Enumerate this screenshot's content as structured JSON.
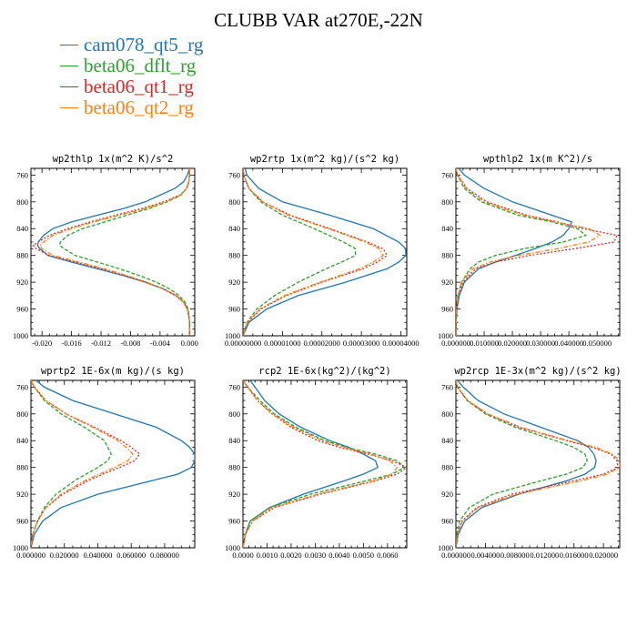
{
  "title": "CLUBB VAR at270E,-22N",
  "legend": [
    {
      "name": "cam078_qt5_rg",
      "color": "#1f77b4"
    },
    {
      "name": "beta06_dflt_rg",
      "color": "#2ca02c"
    },
    {
      "name": "beta06_qt1_rg",
      "color": "#d62728"
    },
    {
      "name": "beta06_qt2_rg",
      "color": "#ff7f0e"
    }
  ],
  "chart_data": [
    {
      "type": "line",
      "title": "wp2thlp   1x(m^2 K)/s^2",
      "x_ticks": [
        "-0.020",
        "-0.016",
        "-0.012",
        "-0.008",
        "-0.004",
        "0.000"
      ],
      "xlim": [
        -0.0215,
        0.0007
      ],
      "x_tick_values": [
        -0.02,
        -0.016,
        -0.012,
        -0.008,
        -0.004,
        0.0
      ],
      "y_ticks": [
        "760",
        "800",
        "840",
        "880",
        "920",
        "960",
        "1000"
      ],
      "ylim": [
        1000,
        750
      ],
      "y": [
        750,
        760,
        770,
        780,
        790,
        800,
        810,
        820,
        830,
        840,
        850,
        860,
        865,
        870,
        880,
        890,
        900,
        910,
        920,
        930,
        940,
        950,
        960,
        970,
        980,
        990,
        1000
      ],
      "series": [
        {
          "name": "cam078_qt5_rg",
          "values": [
            0,
            -0.0003,
            -0.0008,
            -0.002,
            -0.004,
            -0.006,
            -0.009,
            -0.0125,
            -0.016,
            -0.0185,
            -0.0198,
            -0.0205,
            -0.0206,
            -0.0203,
            -0.0192,
            -0.016,
            -0.0125,
            -0.009,
            -0.006,
            -0.0035,
            -0.0018,
            -0.0008,
            -0.0003,
            -0.0001,
            0,
            0,
            0
          ]
        },
        {
          "name": "beta06_dflt_rg",
          "values": [
            0,
            0,
            -0.0001,
            -0.0004,
            -0.0012,
            -0.003,
            -0.0055,
            -0.0085,
            -0.0115,
            -0.0145,
            -0.0165,
            -0.0175,
            -0.0176,
            -0.017,
            -0.0155,
            -0.0125,
            -0.0095,
            -0.0068,
            -0.0045,
            -0.0027,
            -0.0014,
            -0.0006,
            -0.0002,
            -0.0001,
            0,
            0,
            0
          ]
        },
        {
          "name": "beta06_qt1_rg",
          "values": [
            0,
            0,
            -0.0001,
            -0.0004,
            -0.0013,
            -0.0035,
            -0.0065,
            -0.01,
            -0.0135,
            -0.0165,
            -0.019,
            -0.0205,
            -0.0212,
            -0.0208,
            -0.019,
            -0.0155,
            -0.012,
            -0.0088,
            -0.006,
            -0.0036,
            -0.0019,
            -0.0008,
            -0.0003,
            -0.0001,
            0,
            0,
            0
          ]
        },
        {
          "name": "beta06_qt2_rg",
          "values": [
            0,
            0,
            -0.0001,
            -0.0004,
            -0.0012,
            -0.0032,
            -0.006,
            -0.0095,
            -0.013,
            -0.016,
            -0.0185,
            -0.0198,
            -0.0203,
            -0.02,
            -0.0185,
            -0.015,
            -0.0115,
            -0.0085,
            -0.0058,
            -0.0035,
            -0.0018,
            -0.0008,
            -0.0003,
            -0.0001,
            0,
            0,
            0
          ]
        }
      ]
    },
    {
      "type": "line",
      "title": "wp2rtp   1x(m^2 kg)/(s^2 kg)",
      "x_ticks": [
        "0.00000000",
        "0.00001000",
        "0.00002000",
        "0.00003000",
        "0.00004000"
      ],
      "xlim": [
        0,
        4.15e-05
      ],
      "x_tick_values": [
        0,
        1e-05,
        2e-05,
        3e-05,
        4e-05
      ],
      "y_ticks": [
        "760",
        "800",
        "840",
        "880",
        "920",
        "960",
        "1000"
      ],
      "ylim": [
        1000,
        750
      ],
      "y": [
        750,
        760,
        780,
        800,
        820,
        840,
        860,
        870,
        880,
        890,
        900,
        920,
        940,
        960,
        980,
        1000
      ],
      "series": [
        {
          "name": "cam078_qt5_rg",
          "values": [
            5e-07,
            1e-06,
            4e-06,
            1e-05,
            2.2e-05,
            3.3e-05,
            3.95e-05,
            4.12e-05,
            4.13e-05,
            3.95e-05,
            3.65e-05,
            2.6e-05,
            1.4e-05,
            6e-06,
            1.5e-06,
            0
          ]
        },
        {
          "name": "beta06_dflt_rg",
          "values": [
            0,
            2e-07,
            1.5e-06,
            4.5e-06,
            1e-05,
            1.8e-05,
            2.55e-05,
            2.85e-05,
            2.85e-05,
            2.5e-05,
            2.1e-05,
            1.4e-05,
            8e-06,
            3.5e-06,
            1e-06,
            0
          ]
        },
        {
          "name": "beta06_qt1_rg",
          "values": [
            0,
            2e-07,
            1.5e-06,
            5e-06,
            1.2e-05,
            2.2e-05,
            3.15e-05,
            3.55e-05,
            3.65e-05,
            3.4e-05,
            3.05e-05,
            2e-05,
            1.1e-05,
            4.5e-06,
            1.2e-06,
            0
          ]
        },
        {
          "name": "beta06_qt2_rg",
          "values": [
            0,
            2e-07,
            1.5e-06,
            5e-06,
            1.15e-05,
            2.15e-05,
            3.1e-05,
            3.45e-05,
            3.55e-05,
            3.3e-05,
            2.95e-05,
            1.95e-05,
            1.05e-05,
            4.2e-06,
            1.1e-06,
            0
          ]
        }
      ]
    },
    {
      "type": "line",
      "title": "wpthlp2   1x(m K^2)/s",
      "x_ticks": [
        "0.000000",
        "0.010000",
        "0.020000",
        "0.030000",
        "0.040000",
        "0.050000"
      ],
      "xlim": [
        0,
        0.058
      ],
      "x_tick_values": [
        0,
        0.01,
        0.02,
        0.03,
        0.04,
        0.05
      ],
      "y_ticks": [
        "760",
        "800",
        "840",
        "880",
        "920",
        "960",
        "1000"
      ],
      "ylim": [
        1000,
        750
      ],
      "y": [
        750,
        760,
        780,
        800,
        820,
        830,
        840,
        850,
        860,
        870,
        880,
        890,
        900,
        920,
        940,
        960,
        980,
        1000
      ],
      "series": [
        {
          "name": "cam078_qt5_rg",
          "values": [
            0.001,
            0.003,
            0.01,
            0.02,
            0.034,
            0.041,
            0.04,
            0.038,
            0.034,
            0.028,
            0.021,
            0.014,
            0.008,
            0.003,
            0.0012,
            0.0004,
            0.0001,
            0
          ]
        },
        {
          "name": "beta06_dflt_rg",
          "values": [
            0,
            0.0005,
            0.003,
            0.009,
            0.022,
            0.034,
            0.043,
            0.046,
            0.038,
            0.024,
            0.014,
            0.008,
            0.005,
            0.002,
            0.0007,
            0.0002,
            0.0001,
            0
          ]
        },
        {
          "name": "beta06_qt1_rg",
          "values": [
            0,
            0.0006,
            0.004,
            0.011,
            0.025,
            0.036,
            0.045,
            0.057,
            0.056,
            0.042,
            0.026,
            0.014,
            0.007,
            0.0025,
            0.0008,
            0.0002,
            0.0001,
            0
          ]
        },
        {
          "name": "beta06_qt2_rg",
          "values": [
            0,
            0.0006,
            0.0035,
            0.01,
            0.024,
            0.035,
            0.047,
            0.051,
            0.047,
            0.036,
            0.022,
            0.012,
            0.006,
            0.002,
            0.0007,
            0.0002,
            0.0001,
            0
          ]
        }
      ]
    },
    {
      "type": "line",
      "title": "wprtp2   1E-6x(m kg)/(s kg)",
      "x_ticks": [
        "0.000000",
        "0.020000",
        "0.040000",
        "0.060000",
        "0.080000"
      ],
      "xlim": [
        0,
        0.098
      ],
      "x_tick_values": [
        0,
        0.02,
        0.04,
        0.06,
        0.08
      ],
      "y_ticks": [
        "760",
        "800",
        "840",
        "880",
        "920",
        "960",
        "1000"
      ],
      "ylim": [
        1000,
        750
      ],
      "y": [
        750,
        760,
        780,
        800,
        820,
        840,
        850,
        860,
        870,
        880,
        890,
        900,
        920,
        940,
        960,
        980,
        1000
      ],
      "series": [
        {
          "name": "cam078_qt5_rg",
          "values": [
            0.003,
            0.008,
            0.025,
            0.05,
            0.075,
            0.09,
            0.095,
            0.098,
            0.098,
            0.096,
            0.088,
            0.072,
            0.04,
            0.018,
            0.007,
            0.002,
            0
          ]
        },
        {
          "name": "beta06_dflt_rg",
          "values": [
            0,
            0.002,
            0.008,
            0.018,
            0.032,
            0.044,
            0.046,
            0.048,
            0.046,
            0.04,
            0.033,
            0.026,
            0.015,
            0.008,
            0.004,
            0.001,
            0
          ]
        },
        {
          "name": "beta06_qt1_rg",
          "values": [
            0,
            0.002,
            0.009,
            0.021,
            0.038,
            0.054,
            0.06,
            0.065,
            0.062,
            0.053,
            0.043,
            0.034,
            0.019,
            0.009,
            0.004,
            0.001,
            0
          ]
        },
        {
          "name": "beta06_qt2_rg",
          "values": [
            0,
            0.002,
            0.009,
            0.021,
            0.037,
            0.052,
            0.057,
            0.061,
            0.058,
            0.05,
            0.041,
            0.032,
            0.018,
            0.009,
            0.004,
            0.001,
            0
          ]
        }
      ]
    },
    {
      "type": "line",
      "title": "rcp2   1E-6x(kg^2)/(kg^2)",
      "x_ticks": [
        "0.0000",
        "0.0010",
        "0.0020",
        "0.0030",
        "0.0040",
        "0.0050",
        "0.0060"
      ],
      "xlim": [
        0,
        0.0068
      ],
      "x_tick_values": [
        0,
        0.001,
        0.002,
        0.003,
        0.004,
        0.005,
        0.006
      ],
      "y_ticks": [
        "760",
        "800",
        "840",
        "880",
        "920",
        "960",
        "1000"
      ],
      "ylim": [
        1000,
        750
      ],
      "y": [
        750,
        760,
        780,
        800,
        820,
        840,
        850,
        860,
        870,
        880,
        890,
        900,
        920,
        940,
        960,
        980,
        1000
      ],
      "series": [
        {
          "name": "cam078_qt5_rg",
          "values": [
            0.0003,
            0.0005,
            0.0009,
            0.0015,
            0.0024,
            0.0036,
            0.0044,
            0.005,
            0.0055,
            0.0056,
            0.005,
            0.0042,
            0.0025,
            0.0011,
            0.0003,
            0.0001,
            0
          ]
        },
        {
          "name": "beta06_dflt_rg",
          "values": [
            0,
            0.0002,
            0.0007,
            0.0013,
            0.0022,
            0.0034,
            0.0043,
            0.0055,
            0.0064,
            0.0067,
            0.0062,
            0.0051,
            0.0028,
            0.0011,
            0.0003,
            0.0001,
            0
          ]
        },
        {
          "name": "beta06_qt1_rg",
          "values": [
            0,
            0.0002,
            0.0006,
            0.0012,
            0.002,
            0.0031,
            0.004,
            0.0052,
            0.0062,
            0.0068,
            0.0064,
            0.0055,
            0.0032,
            0.0013,
            0.0004,
            0.0001,
            0
          ]
        },
        {
          "name": "beta06_qt2_rg",
          "values": [
            0,
            0.0002,
            0.0006,
            0.0012,
            0.0021,
            0.0033,
            0.0042,
            0.0053,
            0.0061,
            0.0064,
            0.0062,
            0.0054,
            0.0031,
            0.0012,
            0.0004,
            0.0001,
            0
          ]
        }
      ]
    },
    {
      "type": "line",
      "title": "wp2rcp   1E-3x(m^2 kg)/(s^2 kg)",
      "x_ticks": [
        "0.000000",
        "0.004000",
        "0.008000",
        "0.012000",
        "0.016000",
        "0.020000"
      ],
      "xlim": [
        0,
        0.0222
      ],
      "x_tick_values": [
        0,
        0.004,
        0.008,
        0.012,
        0.016,
        0.02
      ],
      "y_ticks": [
        "760",
        "800",
        "840",
        "880",
        "920",
        "960",
        "1000"
      ],
      "ylim": [
        1000,
        750
      ],
      "y": [
        750,
        760,
        780,
        800,
        820,
        840,
        850,
        860,
        870,
        880,
        890,
        900,
        920,
        940,
        960,
        980,
        1000
      ],
      "series": [
        {
          "name": "cam078_qt5_rg",
          "values": [
            0.0002,
            0.001,
            0.003,
            0.0065,
            0.0115,
            0.0165,
            0.018,
            0.0187,
            0.019,
            0.0188,
            0.0175,
            0.015,
            0.0085,
            0.0035,
            0.0012,
            0.0003,
            0
          ]
        },
        {
          "name": "beta06_dflt_rg",
          "values": [
            0,
            0.0002,
            0.0015,
            0.004,
            0.008,
            0.0135,
            0.016,
            0.0175,
            0.0178,
            0.0172,
            0.015,
            0.0115,
            0.005,
            0.0018,
            0.0005,
            0.0001,
            0
          ]
        },
        {
          "name": "beta06_qt1_rg",
          "values": [
            0,
            0.0002,
            0.0016,
            0.0042,
            0.0085,
            0.015,
            0.0185,
            0.021,
            0.0218,
            0.022,
            0.02,
            0.016,
            0.0075,
            0.0028,
            0.0008,
            0.0002,
            0
          ]
        },
        {
          "name": "beta06_qt2_rg",
          "values": [
            0,
            0.0002,
            0.0016,
            0.0043,
            0.0088,
            0.0152,
            0.019,
            0.0212,
            0.0222,
            0.0222,
            0.0205,
            0.017,
            0.0082,
            0.003,
            0.0009,
            0.0002,
            0
          ]
        }
      ]
    }
  ]
}
